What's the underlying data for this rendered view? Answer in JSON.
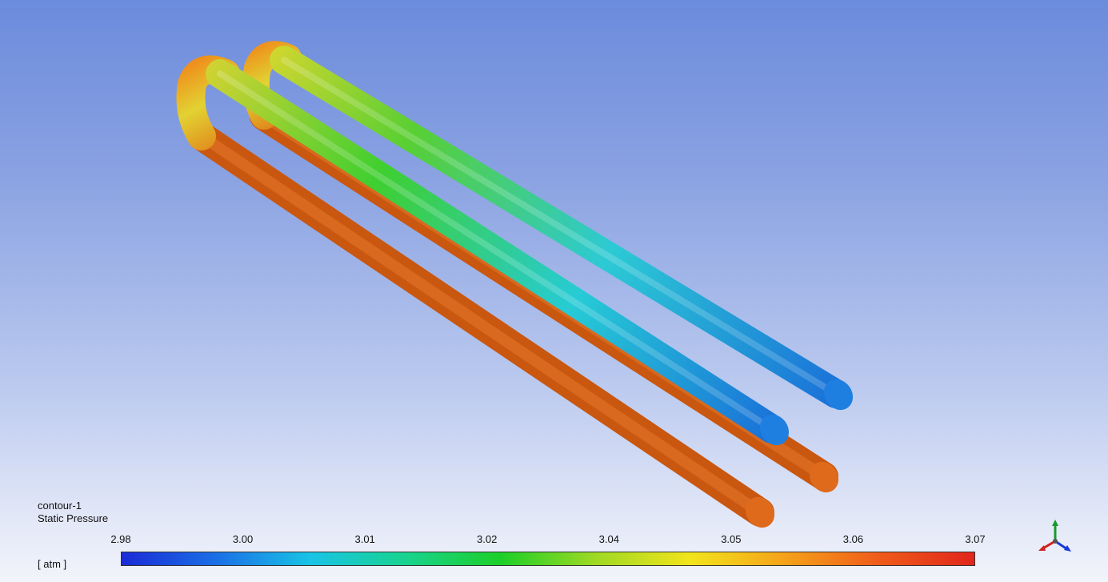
{
  "legend": {
    "title": "contour-1",
    "variable": "Static Pressure",
    "units": "[ atm ]",
    "ticks": [
      "2.98",
      "3.00",
      "3.01",
      "3.02",
      "3.04",
      "3.05",
      "3.06",
      "3.07"
    ]
  },
  "colormap": [
    "#1a2bd6",
    "#1a6fe6",
    "#19c4e6",
    "#18d38f",
    "#1ccf28",
    "#9fd923",
    "#f2e41c",
    "#f5a21a",
    "#ef5b1a",
    "#e1261b"
  ],
  "colors": {
    "pipe_orange": "#d35f16",
    "bend_yellow": "#d9c93a",
    "upper_green": "#5ccf2f",
    "upper_cyan": "#2bc4d8",
    "upper_blue": "#1d78d8"
  },
  "icons": {
    "triad": "axis-triad-icon"
  }
}
